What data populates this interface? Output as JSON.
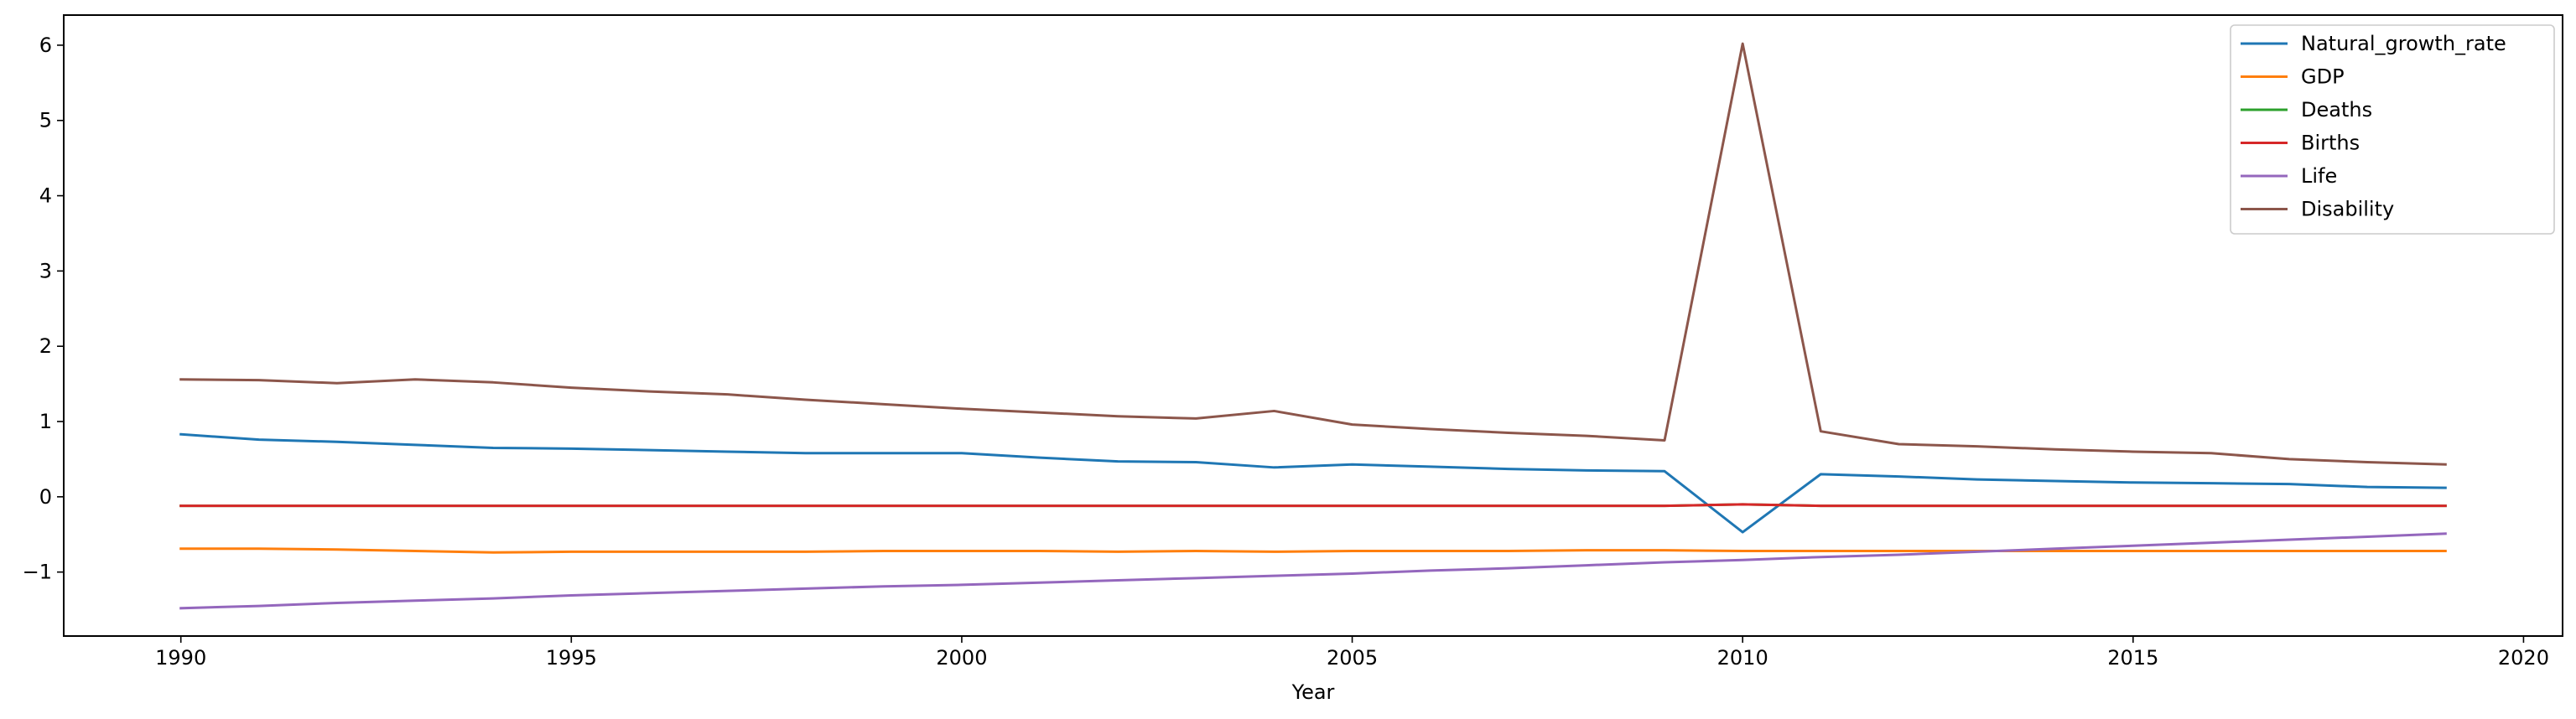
{
  "chart_data": {
    "type": "line",
    "title": "",
    "xlabel": "Year",
    "ylabel": "",
    "xlim": [
      1988.5,
      2020.5
    ],
    "ylim": [
      -1.85,
      6.4
    ],
    "xticks": [
      1990,
      1995,
      2000,
      2005,
      2010,
      2015,
      2020
    ],
    "yticks": [
      -1,
      0,
      1,
      2,
      3,
      4,
      5,
      6
    ],
    "xtick_labels": [
      "1990",
      "1995",
      "2000",
      "2005",
      "2010",
      "2015",
      "2020"
    ],
    "ytick_labels": [
      "−1",
      "0",
      "1",
      "2",
      "3",
      "4",
      "5",
      "6"
    ],
    "legend_position": "top-right",
    "grid": false,
    "x": [
      1990,
      1991,
      1992,
      1993,
      1994,
      1995,
      1996,
      1997,
      1998,
      1999,
      2000,
      2001,
      2002,
      2003,
      2004,
      2005,
      2006,
      2007,
      2008,
      2009,
      2010,
      2011,
      2012,
      2013,
      2014,
      2015,
      2016,
      2017,
      2018,
      2019
    ],
    "series": [
      {
        "name": "Natural_growth_rate",
        "color": "#1f77b4",
        "values": [
          0.83,
          0.76,
          0.73,
          0.69,
          0.65,
          0.64,
          0.62,
          0.6,
          0.58,
          0.58,
          0.58,
          0.52,
          0.47,
          0.46,
          0.39,
          0.43,
          0.4,
          0.37,
          0.35,
          0.34,
          -0.47,
          0.3,
          0.27,
          0.23,
          0.21,
          0.19,
          0.18,
          0.17,
          0.13,
          0.12
        ]
      },
      {
        "name": "GDP",
        "color": "#ff7f0e",
        "values": [
          -0.69,
          -0.69,
          -0.7,
          -0.72,
          -0.74,
          -0.73,
          -0.73,
          -0.73,
          -0.73,
          -0.72,
          -0.72,
          -0.72,
          -0.73,
          -0.72,
          -0.73,
          -0.72,
          -0.72,
          -0.72,
          -0.71,
          -0.71,
          -0.72,
          -0.72,
          -0.72,
          -0.72,
          -0.72,
          -0.72,
          -0.72,
          -0.72,
          -0.72,
          -0.72
        ]
      },
      {
        "name": "Deaths",
        "color": "#2ca02c",
        "values": [
          -0.12,
          -0.12,
          -0.12,
          -0.12,
          -0.12,
          -0.12,
          -0.12,
          -0.12,
          -0.12,
          -0.12,
          -0.12,
          -0.12,
          -0.12,
          -0.12,
          -0.12,
          -0.12,
          -0.12,
          -0.12,
          -0.12,
          -0.12,
          -0.1,
          -0.12,
          -0.12,
          -0.12,
          -0.12,
          -0.12,
          -0.12,
          -0.12,
          -0.12,
          -0.12
        ]
      },
      {
        "name": "Births",
        "color": "#d62728",
        "values": [
          -0.12,
          -0.12,
          -0.12,
          -0.12,
          -0.12,
          -0.12,
          -0.12,
          -0.12,
          -0.12,
          -0.12,
          -0.12,
          -0.12,
          -0.12,
          -0.12,
          -0.12,
          -0.12,
          -0.12,
          -0.12,
          -0.12,
          -0.12,
          -0.1,
          -0.12,
          -0.12,
          -0.12,
          -0.12,
          -0.12,
          -0.12,
          -0.12,
          -0.12,
          -0.12
        ]
      },
      {
        "name": "Life",
        "color": "#9467bd",
        "values": [
          -1.48,
          -1.45,
          -1.41,
          -1.38,
          -1.35,
          -1.31,
          -1.28,
          -1.25,
          -1.22,
          -1.19,
          -1.17,
          -1.14,
          -1.11,
          -1.08,
          -1.05,
          -1.02,
          -0.98,
          -0.95,
          -0.91,
          -0.87,
          -0.84,
          -0.8,
          -0.77,
          -0.73,
          -0.69,
          -0.65,
          -0.61,
          -0.57,
          -0.53,
          -0.49
        ]
      },
      {
        "name": "Disability",
        "color": "#8c564b",
        "values": [
          1.56,
          1.55,
          1.51,
          1.56,
          1.52,
          1.45,
          1.4,
          1.36,
          1.29,
          1.23,
          1.17,
          1.12,
          1.07,
          1.04,
          1.14,
          0.96,
          0.9,
          0.85,
          0.81,
          0.75,
          6.02,
          0.87,
          0.7,
          0.67,
          0.63,
          0.6,
          0.58,
          0.5,
          0.46,
          0.43
        ]
      }
    ]
  }
}
